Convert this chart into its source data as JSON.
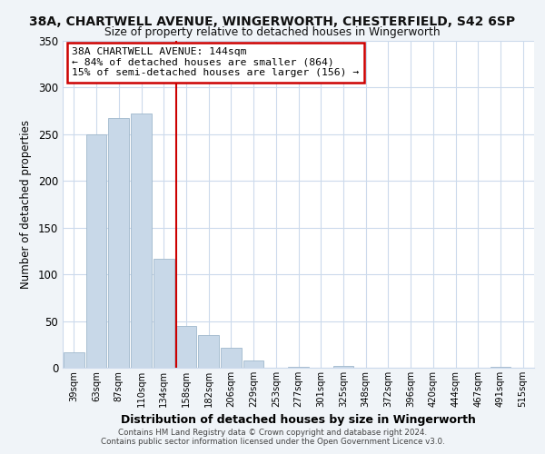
{
  "title": "38A, CHARTWELL AVENUE, WINGERWORTH, CHESTERFIELD, S42 6SP",
  "subtitle": "Size of property relative to detached houses in Wingerworth",
  "xlabel": "Distribution of detached houses by size in Wingerworth",
  "ylabel": "Number of detached properties",
  "bar_color": "#c8d8e8",
  "bar_edge_color": "#a0b8cc",
  "bin_labels": [
    "39sqm",
    "63sqm",
    "87sqm",
    "110sqm",
    "134sqm",
    "158sqm",
    "182sqm",
    "206sqm",
    "229sqm",
    "253sqm",
    "277sqm",
    "301sqm",
    "325sqm",
    "348sqm",
    "372sqm",
    "396sqm",
    "420sqm",
    "444sqm",
    "467sqm",
    "491sqm",
    "515sqm"
  ],
  "bar_heights": [
    17,
    250,
    267,
    272,
    117,
    45,
    35,
    21,
    8,
    0,
    1,
    0,
    2,
    0,
    0,
    0,
    0,
    0,
    0,
    1,
    0
  ],
  "ylim": [
    0,
    350
  ],
  "yticks": [
    0,
    50,
    100,
    150,
    200,
    250,
    300,
    350
  ],
  "property_line_x": 4.55,
  "annotation_title": "38A CHARTWELL AVENUE: 144sqm",
  "annotation_line1": "← 84% of detached houses are smaller (864)",
  "annotation_line2": "15% of semi-detached houses are larger (156) →",
  "annotation_box_color": "#ffffff",
  "annotation_box_edge": "#cc0000",
  "vline_color": "#cc0000",
  "footer1": "Contains HM Land Registry data © Crown copyright and database right 2024.",
  "footer2": "Contains public sector information licensed under the Open Government Licence v3.0.",
  "background_color": "#f0f4f8",
  "plot_bg_color": "#ffffff",
  "grid_color": "#ccdaec"
}
